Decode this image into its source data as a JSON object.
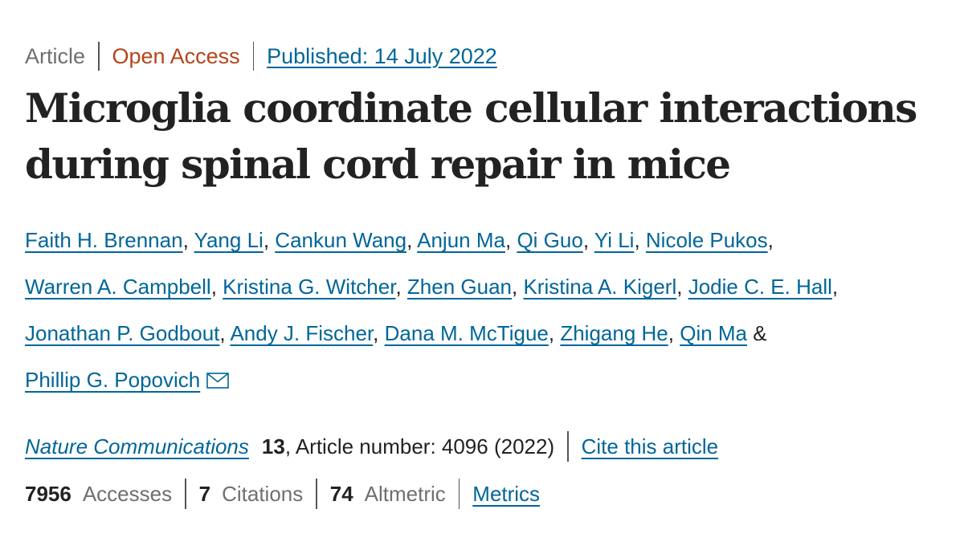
{
  "meta": {
    "type": "Article",
    "access": "Open Access",
    "published": "Published: 14 July 2022"
  },
  "title": "Microglia coordinate cellular interactions during spinal cord repair in mice",
  "authors": [
    "Faith H. Brennan",
    "Yang Li",
    "Cankun Wang",
    "Anjun Ma",
    "Qi Guo",
    "Yi Li",
    "Nicole Pukos",
    "Warren A. Campbell",
    "Kristina G. Witcher",
    "Zhen Guan",
    "Kristina A. Kigerl",
    "Jodie C. E. Hall",
    "Jonathan P. Godbout",
    "Andy J. Fischer",
    "Dana M. McTigue",
    "Zhigang He",
    "Qin Ma",
    "Phillip G. Popovich"
  ],
  "authors_last_separator": "&",
  "authors_separator": ",",
  "icons": {
    "corresponding_author": "envelope-icon"
  },
  "journal": {
    "name": "Nature Communications",
    "volume": "13",
    "article_number": ", Article number: 4096 (2022)",
    "cite_label": "Cite this article"
  },
  "stats": {
    "accesses_value": "7956",
    "accesses_label": "Accesses",
    "citations_value": "7",
    "citations_label": "Citations",
    "altmetric_value": "74",
    "altmetric_label": "Altmetric",
    "metrics_label": "Metrics"
  },
  "colors": {
    "link": "#006699",
    "open_access": "#b4441c",
    "muted": "#6f6f6f",
    "text": "#222222"
  }
}
